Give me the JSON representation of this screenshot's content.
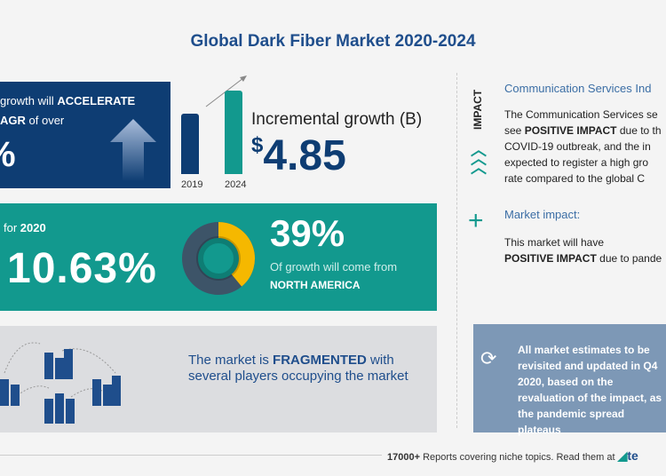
{
  "title": "Global Dark Fiber Market 2020-2024",
  "cagr": {
    "line1_pre": "growth will",
    "line1_bold": "ACCELERATE",
    "line2_bold": "AGR",
    "line2_post": "of over",
    "value": "%"
  },
  "chart_data": {
    "type": "bar",
    "categories": [
      "2019",
      "2024"
    ],
    "values": [
      null,
      null
    ]
  },
  "incremental": {
    "label": "Incremental growth (B)",
    "currency": "$",
    "value": "4.85"
  },
  "yoy": {
    "label_pre": "for",
    "year": "2020",
    "value": "10.63%"
  },
  "region": {
    "percent": "39%",
    "text": "Of growth will come from",
    "name": "NORTH AMERICA",
    "share": 0.39
  },
  "fragmented": {
    "pre": "The market is",
    "bold": "FRAGMENTED",
    "post": "with several players occupying the market"
  },
  "impact": {
    "vertical_label": "IMPACT",
    "heading": "Communication Services Ind",
    "text_pre": "The Communication Services se",
    "text_line2_pre": "see",
    "text_bold": "POSITIVE IMPACT",
    "text_line2_post": "due to th",
    "text_rest": "COVID-19 outbreak, and the in expected to register a high gro rate compared to the global C"
  },
  "market_impact": {
    "heading": "Market impact:",
    "line1": "This market will have",
    "bold": "POSITIVE IMPACT",
    "post": "due to pande"
  },
  "note": "All market estimates to be revisited and updated in Q4 2020, based on the revaluation of the impact, as the pandemic spread plateaus",
  "footer": {
    "bold": "17000+",
    "text": "Reports covering niche topics. Read them at",
    "brand": "te"
  },
  "colors": {
    "navy": "#0e3d73",
    "teal": "#12998e",
    "yellow": "#f5b800",
    "gray_blue": "#7d98b6"
  }
}
